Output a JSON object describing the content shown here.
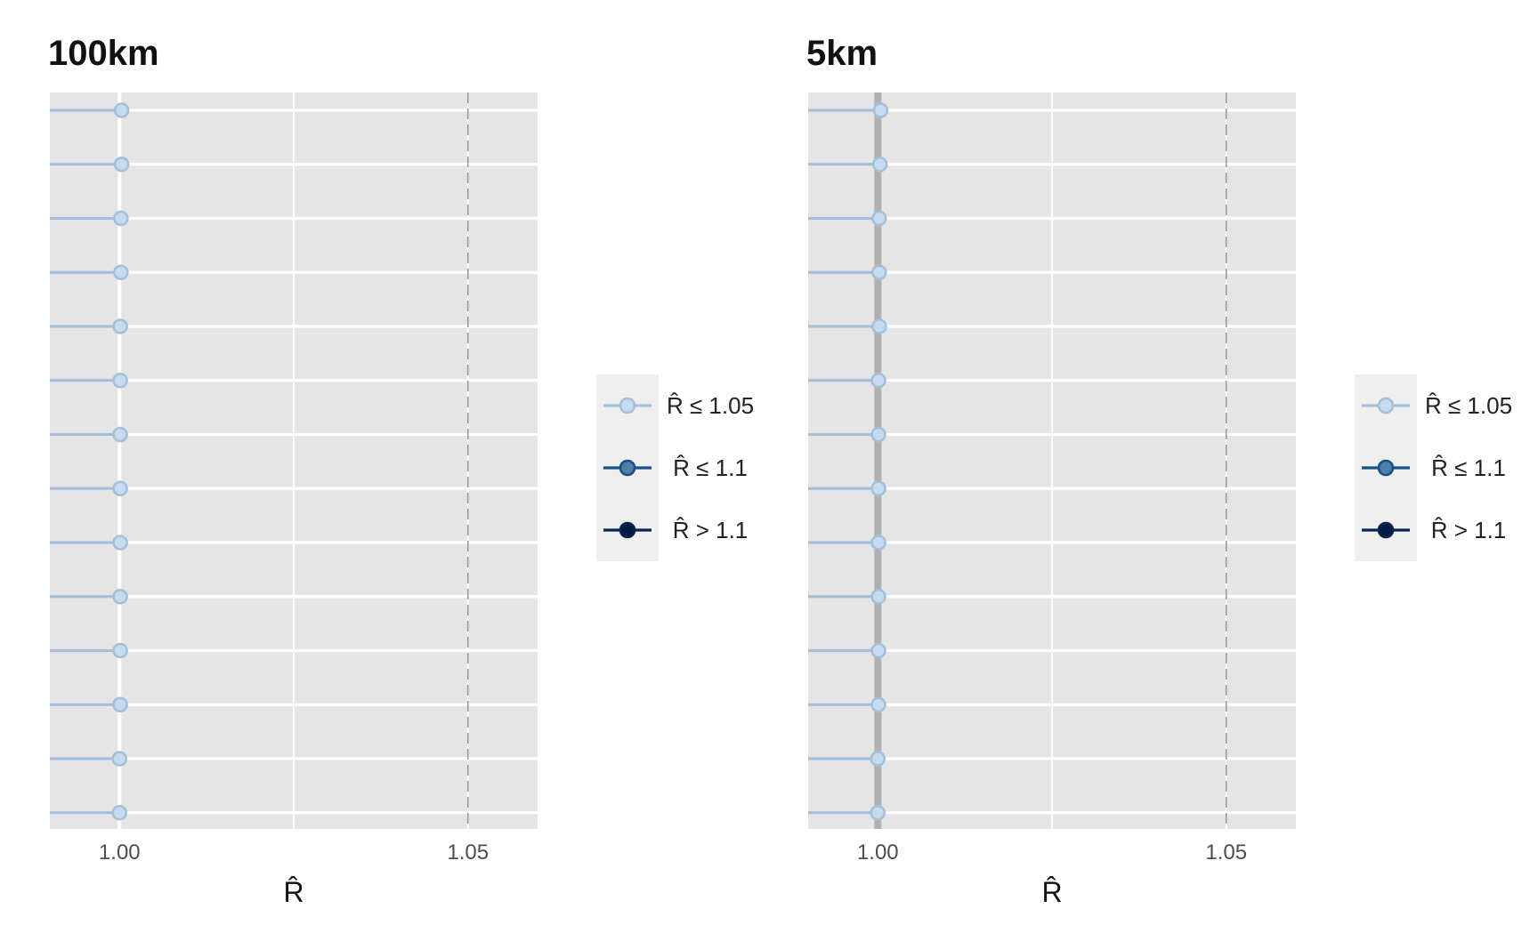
{
  "colors": {
    "panel_bg": "#e5e5e5",
    "grid": "#ffffff",
    "legend_bg": "#efefef",
    "light": "#a6bfd9",
    "light_fill": "#c6dbef",
    "mid": "#1a4f8b",
    "mid_fill": "#4f7ea8",
    "dark": "#0a2450",
    "dark_fill": "#031a45",
    "ref_line": "#999999",
    "highlight_line": "#b0b0b0"
  },
  "legend": {
    "items": [
      {
        "label": "R̂ ≤ 1.05",
        "level": "light"
      },
      {
        "label": "R̂ ≤ 1.1",
        "level": "mid"
      },
      {
        "label": "R̂ > 1.1",
        "level": "dark"
      }
    ]
  },
  "chart_data": [
    {
      "type": "lollipop",
      "title": "100km",
      "xlabel": "R̂",
      "xlim": [
        0.99,
        1.06
      ],
      "xticks": [
        1.0,
        1.05
      ],
      "xtick_labels": [
        "1.00",
        "1.05"
      ],
      "major_gridlines": [
        1.0,
        1.025,
        1.05
      ],
      "reference_lines": [
        {
          "x": 1.0,
          "style": "solid-white"
        },
        {
          "x": 1.05,
          "style": "dashed"
        }
      ],
      "values": [
        1.0003,
        1.0003,
        1.0002,
        1.0002,
        1.0001,
        1.0001,
        1.0001,
        1.0001,
        1.0001,
        1.0001,
        1.0001,
        1.0001,
        1.0,
        1.0
      ],
      "legend_placement": "right"
    },
    {
      "type": "lollipop",
      "title": "5km",
      "xlabel": "R̂",
      "xlim": [
        0.99,
        1.06
      ],
      "xticks": [
        1.0,
        1.05
      ],
      "xtick_labels": [
        "1.00",
        "1.05"
      ],
      "major_gridlines": [
        1.0,
        1.025,
        1.05
      ],
      "reference_lines": [
        {
          "x": 1.0,
          "style": "solid-grey"
        },
        {
          "x": 1.05,
          "style": "dashed"
        }
      ],
      "values": [
        1.0004,
        1.0003,
        1.0002,
        1.0002,
        1.0002,
        1.0001,
        1.0001,
        1.0001,
        1.0001,
        1.0001,
        1.0001,
        1.0001,
        1.0,
        1.0
      ],
      "legend_placement": "right"
    }
  ]
}
